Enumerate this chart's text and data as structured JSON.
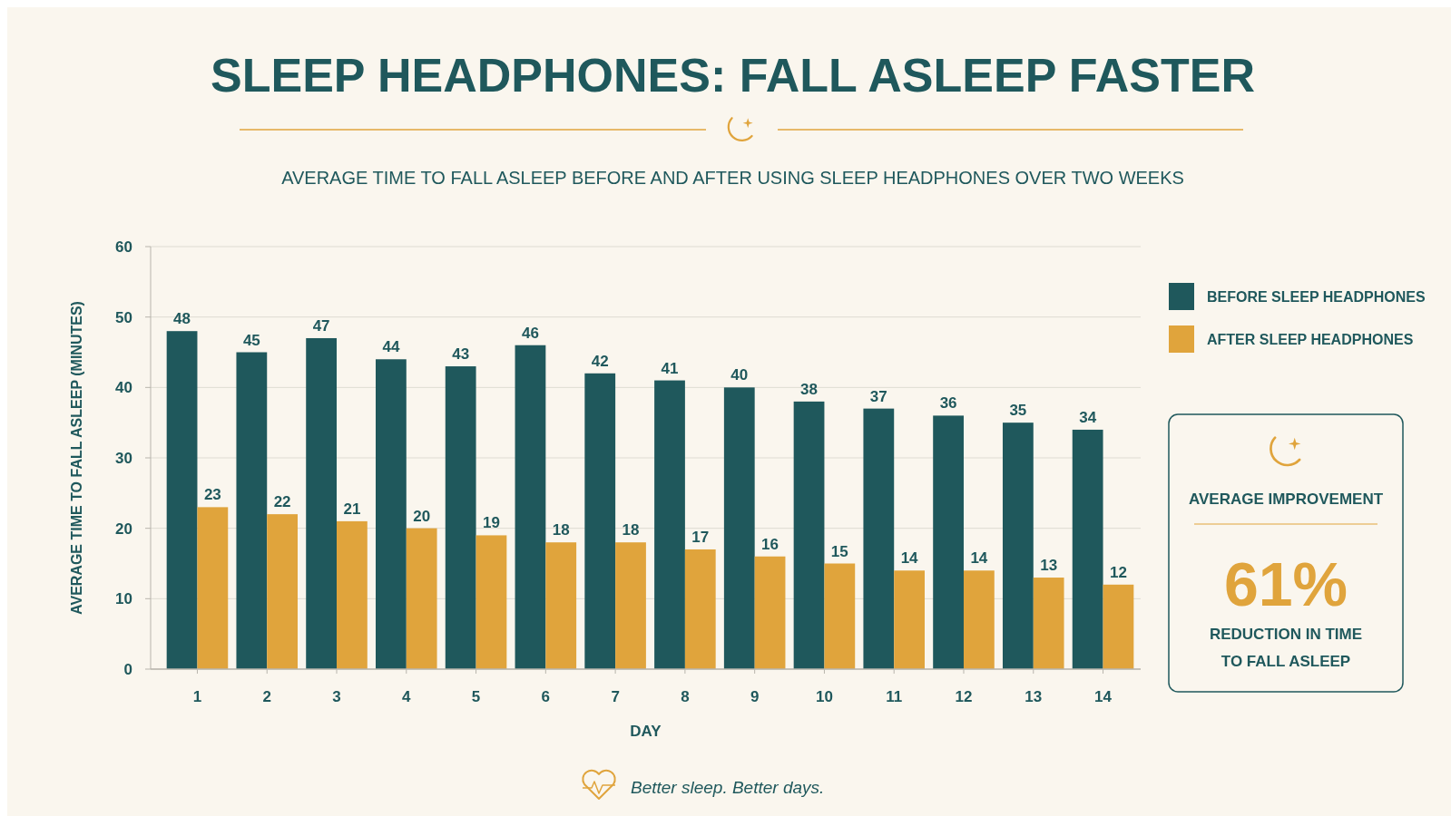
{
  "chart_data": {
    "type": "bar",
    "title": "SLEEP HEADPHONES: FALL ASLEEP FASTER",
    "subtitle": "AVERAGE TIME TO FALL ASLEEP BEFORE AND AFTER USING SLEEP HEADPHONES OVER TWO WEEKS",
    "xlabel": "DAY",
    "ylabel": "AVERAGE TIME TO FALL ASLEEP (MINUTES)",
    "categories": [
      "1",
      "2",
      "3",
      "4",
      "5",
      "6",
      "7",
      "8",
      "9",
      "10",
      "11",
      "12",
      "13",
      "14"
    ],
    "series": [
      {
        "name": "BEFORE SLEEP HEADPHONES",
        "color": "#1f585c",
        "values": [
          48,
          45,
          47,
          44,
          43,
          46,
          42,
          41,
          40,
          38,
          37,
          36,
          35,
          34
        ]
      },
      {
        "name": "AFTER SLEEP HEADPHONES",
        "color": "#e0a43c",
        "values": [
          23,
          22,
          21,
          20,
          19,
          18,
          18,
          17,
          16,
          15,
          14,
          14,
          13,
          12
        ]
      }
    ],
    "ylim": [
      0,
      60
    ],
    "yticks": [
      0,
      10,
      20,
      30,
      40,
      50,
      60
    ],
    "grid": "y",
    "legend": "top right",
    "data_labels": true,
    "annotations": [
      "AVERAGE IMPROVEMENT",
      "61%",
      "REDUCTION IN TIME TO FALL ASLEEP",
      "Better sleep. Better days."
    ]
  }
}
